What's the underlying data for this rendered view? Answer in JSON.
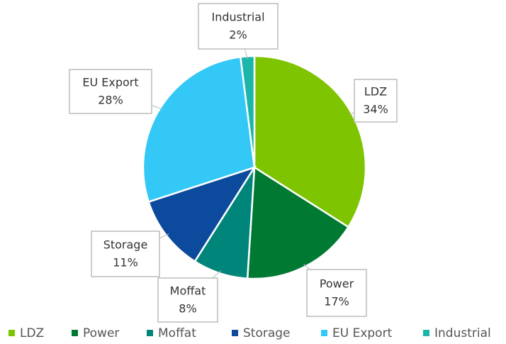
{
  "chart_data": {
    "type": "pie",
    "categories": [
      "LDZ",
      "Power",
      "Moffat",
      "Storage",
      "EU Export",
      "Industrial"
    ],
    "values": [
      34,
      17,
      8,
      11,
      28,
      2
    ],
    "value_labels": [
      "34%",
      "17%",
      "8%",
      "11%",
      "28%",
      "2%"
    ],
    "colors": [
      "#7ec400",
      "#007a33",
      "#00857a",
      "#0b4a9c",
      "#33c8f5",
      "#1cb5a9"
    ],
    "legend": "bottom"
  }
}
